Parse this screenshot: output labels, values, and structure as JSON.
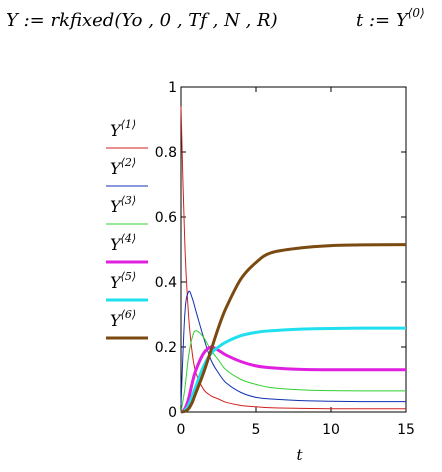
{
  "formulas": {
    "assign": "Y := rkfixed(Yo , 0 , Tf , N , R)",
    "t_def_base": "t := Y",
    "t_def_sup": "⟨0⟩"
  },
  "chart_data": {
    "type": "line",
    "xlabel": "t",
    "ylabel": "",
    "xlim": [
      0,
      15
    ],
    "ylim": [
      0,
      1
    ],
    "xticks": [
      "0",
      "5",
      "10",
      "15"
    ],
    "yticks": [
      "0",
      "0.2",
      "0.4",
      "0.6",
      "0.8",
      "1"
    ],
    "grid": false,
    "legend": "left",
    "x": [
      0,
      0.25,
      0.5,
      0.75,
      1,
      1.5,
      2,
      2.5,
      3,
      4,
      5,
      6,
      8,
      10,
      12,
      15
    ],
    "series": [
      {
        "name": "Y",
        "sup": "⟨1⟩",
        "color": "#d02020",
        "width": 1,
        "values": [
          0.94,
          0.52,
          0.3,
          0.18,
          0.12,
          0.07,
          0.05,
          0.04,
          0.03,
          0.02,
          0.016,
          0.013,
          0.011,
          0.01,
          0.01,
          0.01
        ]
      },
      {
        "name": "Y",
        "sup": "⟨2⟩",
        "color": "#1030b0",
        "width": 1,
        "values": [
          0.02,
          0.3,
          0.37,
          0.35,
          0.31,
          0.23,
          0.16,
          0.12,
          0.09,
          0.06,
          0.045,
          0.04,
          0.035,
          0.033,
          0.032,
          0.032
        ]
      },
      {
        "name": "Y",
        "sup": "⟨3⟩",
        "color": "#30d030",
        "width": 1,
        "values": [
          0.0,
          0.07,
          0.17,
          0.23,
          0.25,
          0.23,
          0.19,
          0.16,
          0.13,
          0.1,
          0.085,
          0.075,
          0.068,
          0.066,
          0.065,
          0.065
        ]
      },
      {
        "name": "Y",
        "sup": "⟨4⟩",
        "color": "#e020e0",
        "width": 3,
        "values": [
          0.0,
          0.01,
          0.04,
          0.09,
          0.13,
          0.18,
          0.2,
          0.19,
          0.175,
          0.155,
          0.142,
          0.136,
          0.131,
          0.13,
          0.13,
          0.13
        ]
      },
      {
        "name": "Y",
        "sup": "⟨5⟩",
        "color": "#20e0f0",
        "width": 3,
        "values": [
          0.0,
          0.005,
          0.02,
          0.05,
          0.08,
          0.14,
          0.18,
          0.2,
          0.215,
          0.235,
          0.245,
          0.25,
          0.255,
          0.257,
          0.258,
          0.258
        ]
      },
      {
        "name": "Y",
        "sup": "⟨6⟩",
        "color": "#7a4a10",
        "width": 3,
        "values": [
          0.0,
          0.002,
          0.01,
          0.03,
          0.06,
          0.12,
          0.19,
          0.26,
          0.32,
          0.41,
          0.46,
          0.49,
          0.505,
          0.512,
          0.514,
          0.515
        ]
      }
    ]
  }
}
